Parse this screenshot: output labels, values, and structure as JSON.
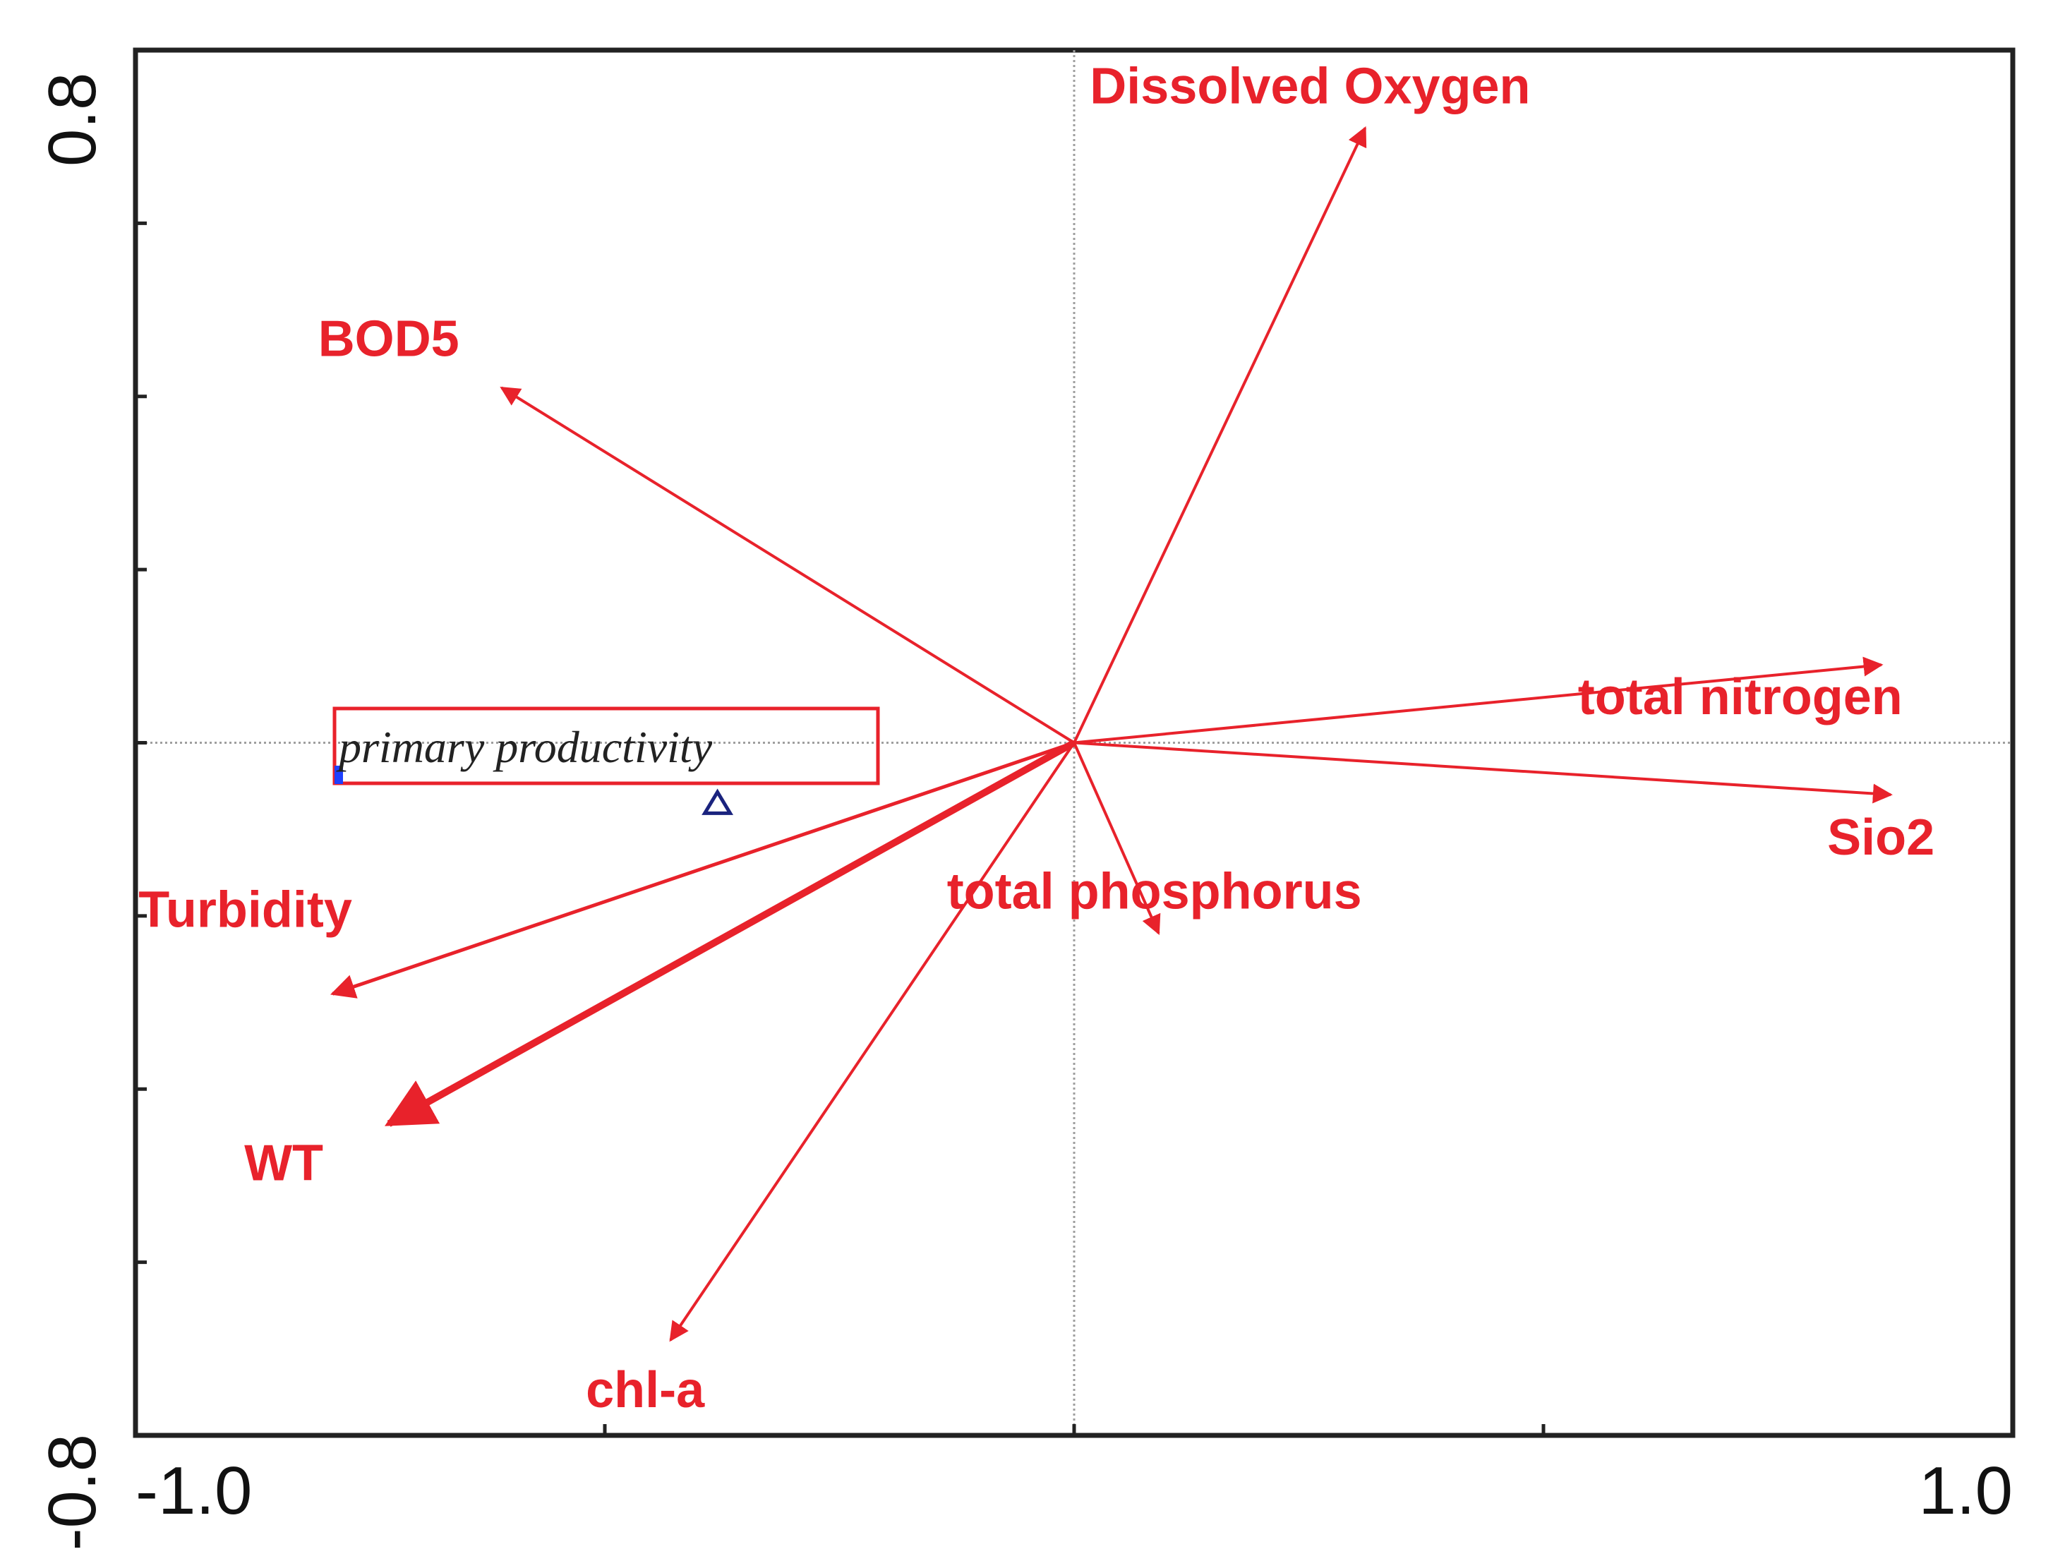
{
  "chart_data": {
    "type": "scatter",
    "subtype": "biplot",
    "title": "",
    "xlabel": "",
    "ylabel": "",
    "xlim": [
      -1.0,
      1.0
    ],
    "ylim": [
      -0.8,
      0.8
    ],
    "x_tick_labels": [
      "-1.0",
      "1.0"
    ],
    "y_tick_labels": [
      "0.8",
      "-0.8"
    ],
    "grid": false,
    "zero_lines": true,
    "colors": {
      "vectors": "#e8222b",
      "response": "#222222",
      "marker": "#1a237e",
      "axis": "#222222",
      "zero_line": "#9e9e9e"
    },
    "vectors": [
      {
        "label": "Dissolved Oxygen",
        "x": 0.31,
        "y": 0.71
      },
      {
        "label": "BOD5",
        "x": -0.61,
        "y": 0.41
      },
      {
        "label": "total nitrogen",
        "x": 0.86,
        "y": 0.09
      },
      {
        "label": "Sio2",
        "x": 0.87,
        "y": -0.06
      },
      {
        "label": "total phosphorus",
        "x": 0.09,
        "y": -0.22
      },
      {
        "label": "Turbidity",
        "x": -0.79,
        "y": -0.29
      },
      {
        "label": "WT",
        "x": -0.73,
        "y": -0.44
      },
      {
        "label": "chl-a",
        "x": -0.43,
        "y": -0.69
      }
    ],
    "response": {
      "label": "primary productivity",
      "x": -0.38,
      "y": -0.07
    }
  }
}
